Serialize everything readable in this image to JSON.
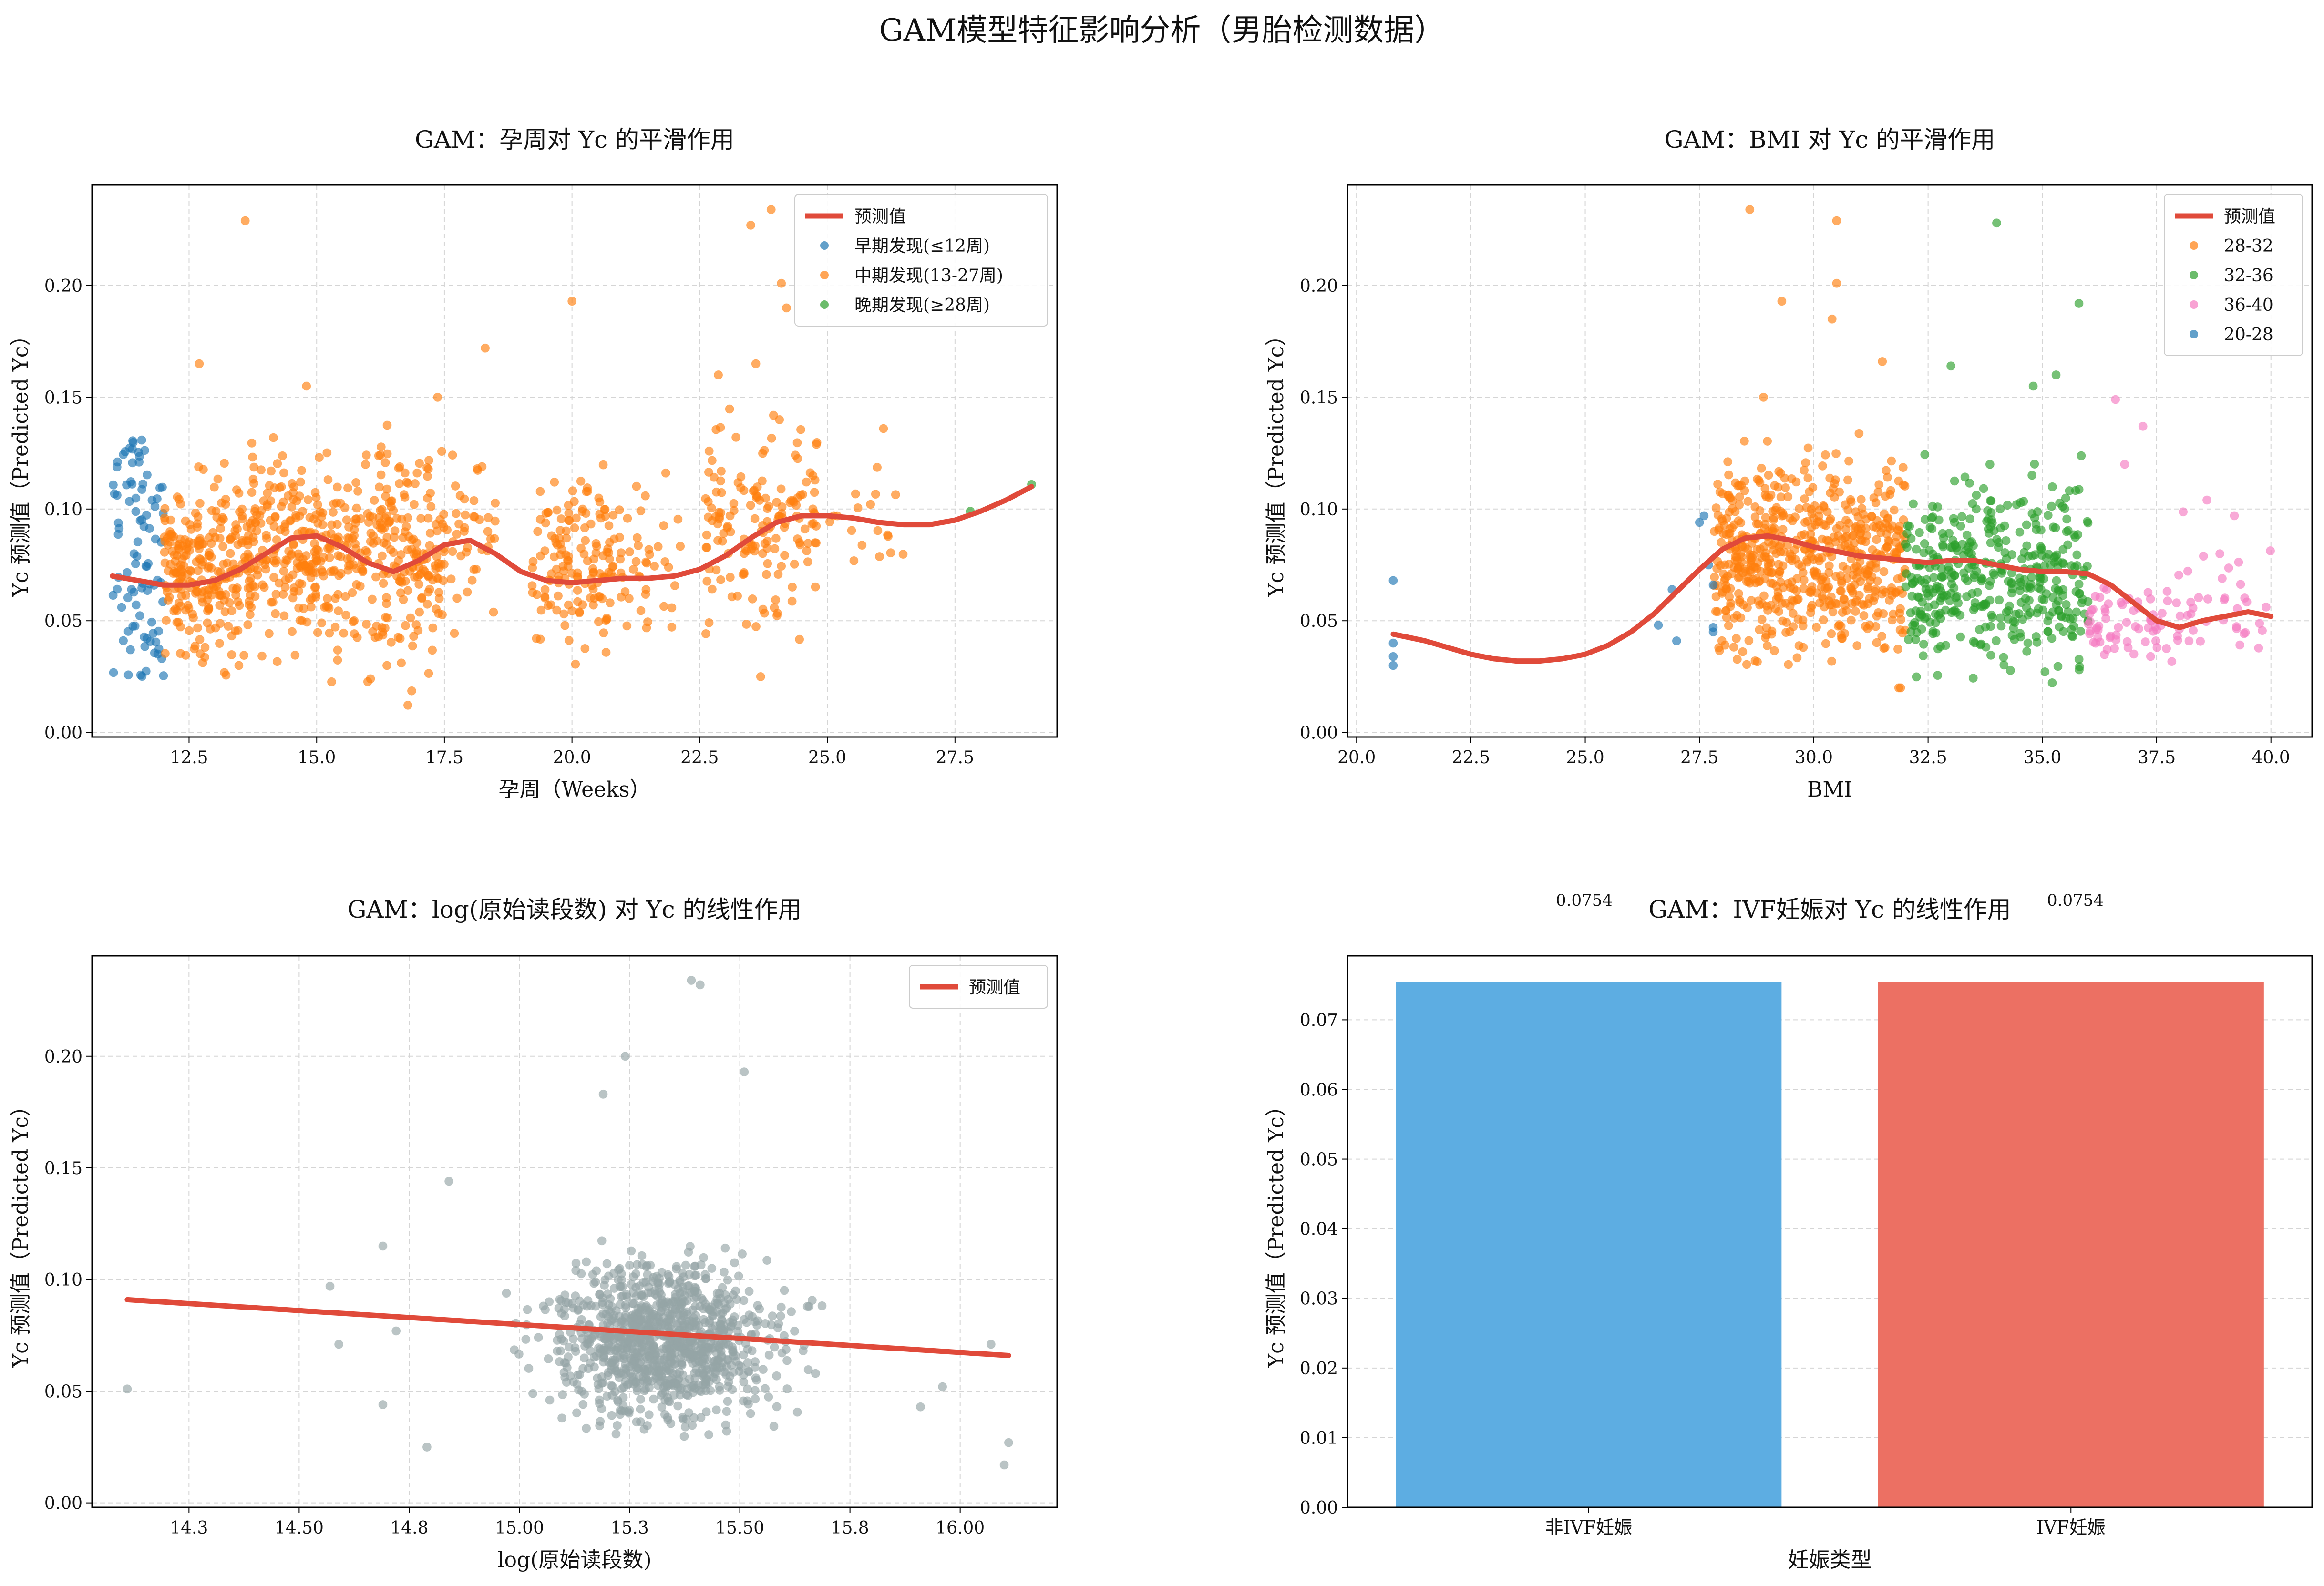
{
  "figure": {
    "suptitle": "GAM模型特征影响分析（男胎检测数据）"
  },
  "chart_data": [
    {
      "type": "scatter",
      "title": "GAM：孕周对 Yc 的平滑作用",
      "xlabel": "孕周（Weeks）",
      "ylabel": "Yc 预测值（Predicted Yc）",
      "xlim": [
        10.6,
        29.5
      ],
      "ylim": [
        -0.002,
        0.245
      ],
      "xticks": [
        12.5,
        15.0,
        17.5,
        20.0,
        22.5,
        25.0,
        27.5
      ],
      "yticks": [
        0.0,
        0.05,
        0.1,
        0.15,
        0.2
      ],
      "grid": true,
      "legend_position": "top-right",
      "legend": [
        "预测值",
        "早期发现(≤12周)",
        "中期发现(13-27周)",
        "晚期发现(≥28周)"
      ],
      "series": [
        {
          "name": "预测值",
          "kind": "line",
          "color": "#e04a3a",
          "points": [
            [
              11.0,
              0.07
            ],
            [
              11.5,
              0.068
            ],
            [
              12.0,
              0.066
            ],
            [
              12.5,
              0.066
            ],
            [
              13.0,
              0.068
            ],
            [
              13.5,
              0.073
            ],
            [
              14.0,
              0.08
            ],
            [
              14.5,
              0.087
            ],
            [
              15.0,
              0.088
            ],
            [
              15.5,
              0.083
            ],
            [
              16.0,
              0.076
            ],
            [
              16.5,
              0.072
            ],
            [
              17.0,
              0.077
            ],
            [
              17.5,
              0.084
            ],
            [
              18.0,
              0.086
            ],
            [
              18.5,
              0.08
            ],
            [
              19.0,
              0.072
            ],
            [
              19.5,
              0.068
            ],
            [
              20.0,
              0.067
            ],
            [
              20.5,
              0.068
            ],
            [
              21.0,
              0.069
            ],
            [
              21.5,
              0.069
            ],
            [
              22.0,
              0.07
            ],
            [
              22.5,
              0.073
            ],
            [
              23.0,
              0.079
            ],
            [
              23.5,
              0.087
            ],
            [
              24.0,
              0.094
            ],
            [
              24.5,
              0.097
            ],
            [
              25.0,
              0.097
            ],
            [
              25.5,
              0.096
            ],
            [
              26.0,
              0.094
            ],
            [
              26.5,
              0.093
            ],
            [
              27.0,
              0.093
            ],
            [
              27.5,
              0.095
            ],
            [
              28.0,
              0.099
            ],
            [
              28.5,
              0.104
            ],
            [
              29.0,
              0.11
            ]
          ]
        },
        {
          "name": "早期发现(≤12周)",
          "kind": "points",
          "color": "#1f77b4",
          "xrange": [
            11.0,
            12.0
          ],
          "yrange": [
            0.025,
            0.135
          ],
          "n": 90
        },
        {
          "name": "中期发现(13-27周)",
          "kind": "points",
          "color": "#ff7f0e",
          "n": 950,
          "clusters": [
            [
              12.0,
              13.5,
              0.015,
              0.13,
              230
            ],
            [
              13.5,
              15.5,
              0.02,
              0.145,
              260
            ],
            [
              15.5,
              17.5,
              0.01,
              0.15,
              240
            ],
            [
              17.5,
              18.5,
              0.04,
              0.14,
              40
            ],
            [
              19.2,
              21.0,
              0.025,
              0.13,
              150
            ],
            [
              21.0,
              22.2,
              0.015,
              0.14,
              35
            ],
            [
              22.6,
              24.8,
              0.025,
              0.16,
              160
            ],
            [
              25.0,
              26.5,
              0.055,
              0.135,
              18
            ]
          ],
          "outliers": [
            [
              13.6,
              0.229
            ],
            [
              23.5,
              0.227
            ],
            [
              23.9,
              0.234
            ],
            [
              24.1,
              0.201
            ],
            [
              20.0,
              0.193
            ],
            [
              18.3,
              0.172
            ],
            [
              14.8,
              0.155
            ],
            [
              12.7,
              0.165
            ],
            [
              24.2,
              0.19
            ],
            [
              23.6,
              0.165
            ],
            [
              26.1,
              0.136
            ]
          ]
        },
        {
          "name": "晚期发现(≥28周)",
          "kind": "points",
          "color": "#2ca02c",
          "points": [
            [
              27.8,
              0.099
            ],
            [
              29.0,
              0.111
            ]
          ]
        }
      ]
    },
    {
      "type": "scatter",
      "title": "GAM：BMI 对 Yc 的平滑作用",
      "xlabel": "BMI",
      "ylabel": "Yc 预测值（Predicted Yc）",
      "xlim": [
        19.8,
        40.9
      ],
      "ylim": [
        -0.002,
        0.245
      ],
      "xticks": [
        20.0,
        22.5,
        25.0,
        27.5,
        30.0,
        32.5,
        35.0,
        37.5,
        40.0
      ],
      "yticks": [
        0.0,
        0.05,
        0.1,
        0.15,
        0.2
      ],
      "grid": true,
      "legend_position": "top-right",
      "legend": [
        "预测值",
        "28-32",
        "32-36",
        "36-40",
        "20-28"
      ],
      "series": [
        {
          "name": "预测值",
          "kind": "line",
          "color": "#e04a3a",
          "points": [
            [
              20.8,
              0.044
            ],
            [
              21.5,
              0.041
            ],
            [
              22.0,
              0.038
            ],
            [
              22.5,
              0.035
            ],
            [
              23.0,
              0.033
            ],
            [
              23.5,
              0.032
            ],
            [
              24.0,
              0.032
            ],
            [
              24.5,
              0.033
            ],
            [
              25.0,
              0.035
            ],
            [
              25.5,
              0.039
            ],
            [
              26.0,
              0.045
            ],
            [
              26.5,
              0.053
            ],
            [
              27.0,
              0.063
            ],
            [
              27.5,
              0.073
            ],
            [
              28.0,
              0.082
            ],
            [
              28.5,
              0.087
            ],
            [
              29.0,
              0.088
            ],
            [
              29.5,
              0.086
            ],
            [
              30.0,
              0.083
            ],
            [
              30.5,
              0.081
            ],
            [
              31.0,
              0.079
            ],
            [
              31.5,
              0.078
            ],
            [
              32.0,
              0.077
            ],
            [
              32.5,
              0.076
            ],
            [
              33.0,
              0.077
            ],
            [
              33.5,
              0.077
            ],
            [
              34.0,
              0.075
            ],
            [
              34.5,
              0.073
            ],
            [
              35.0,
              0.072
            ],
            [
              35.5,
              0.072
            ],
            [
              36.0,
              0.071
            ],
            [
              36.5,
              0.066
            ],
            [
              37.0,
              0.058
            ],
            [
              37.5,
              0.05
            ],
            [
              38.0,
              0.047
            ],
            [
              38.5,
              0.05
            ],
            [
              39.0,
              0.052
            ],
            [
              39.5,
              0.054
            ],
            [
              40.0,
              0.052
            ]
          ]
        },
        {
          "name": "28-32",
          "kind": "points",
          "color": "#ff7f0e",
          "n": 640,
          "clusters": [
            [
              27.8,
              32.0,
              0.02,
              0.135,
              620
            ]
          ],
          "outliers": [
            [
              28.6,
              0.234
            ],
            [
              30.5,
              0.229
            ],
            [
              30.5,
              0.201
            ],
            [
              29.3,
              0.193
            ],
            [
              30.4,
              0.185
            ],
            [
              31.5,
              0.166
            ],
            [
              28.9,
              0.15
            ]
          ]
        },
        {
          "name": "32-36",
          "kind": "points",
          "color": "#2ca02c",
          "n": 420,
          "clusters": [
            [
              32.0,
              36.0,
              0.01,
              0.13,
              410
            ]
          ],
          "outliers": [
            [
              34.0,
              0.228
            ],
            [
              35.8,
              0.192
            ],
            [
              35.3,
              0.16
            ],
            [
              34.8,
              0.155
            ],
            [
              33.0,
              0.164
            ]
          ]
        },
        {
          "name": "36-40",
          "kind": "points",
          "color": "#f57bc1",
          "n": 110,
          "clusters": [
            [
              36.0,
              37.6,
              0.02,
              0.08,
              60
            ],
            [
              37.6,
              40.0,
              0.015,
              0.1,
              45
            ]
          ],
          "outliers": [
            [
              36.6,
              0.149
            ],
            [
              37.2,
              0.137
            ],
            [
              36.8,
              0.12
            ],
            [
              38.6,
              0.104
            ],
            [
              39.2,
              0.097
            ]
          ]
        },
        {
          "name": "20-28",
          "kind": "points",
          "color": "#1f77b4",
          "points": [
            [
              20.8,
              0.068
            ],
            [
              20.8,
              0.04
            ],
            [
              20.8,
              0.034
            ],
            [
              20.8,
              0.03
            ],
            [
              26.6,
              0.048
            ],
            [
              27.0,
              0.041
            ],
            [
              27.5,
              0.094
            ],
            [
              27.6,
              0.097
            ],
            [
              27.7,
              0.075
            ],
            [
              27.8,
              0.066
            ],
            [
              27.8,
              0.047
            ],
            [
              27.8,
              0.045
            ],
            [
              26.9,
              0.064
            ]
          ]
        }
      ]
    },
    {
      "type": "scatter",
      "title": "GAM：log(原始读段数) 对 Yc 的线性作用",
      "xlabel": "log(原始读段数)",
      "ylabel": "Yc 预测值（Predicted Yc）",
      "xlim": [
        14.03,
        16.22
      ],
      "ylim": [
        -0.002,
        0.245
      ],
      "xticks": [
        14.25,
        14.5,
        14.75,
        15.0,
        15.25,
        15.5,
        15.75,
        16.0
      ],
      "yticks": [
        0.0,
        0.05,
        0.1,
        0.15,
        0.2
      ],
      "grid": true,
      "legend_position": "top-right",
      "legend": [
        "预测值"
      ],
      "series": [
        {
          "name": "预测值",
          "kind": "line",
          "color": "#e04a3a",
          "points": [
            [
              14.11,
              0.091
            ],
            [
              16.11,
              0.066
            ]
          ]
        },
        {
          "kind": "points",
          "color": "#95a5a6",
          "n": 1050,
          "center": [
            15.33,
            0.073
          ],
          "spread": [
            0.19,
            0.025
          ],
          "outliers": [
            [
              14.11,
              0.051
            ],
            [
              14.57,
              0.097
            ],
            [
              14.59,
              0.071
            ],
            [
              14.69,
              0.044
            ],
            [
              14.69,
              0.115
            ],
            [
              14.72,
              0.077
            ],
            [
              14.79,
              0.025
            ],
            [
              14.84,
              0.144
            ],
            [
              16.11,
              0.027
            ],
            [
              16.1,
              0.017
            ],
            [
              16.07,
              0.071
            ],
            [
              15.96,
              0.052
            ],
            [
              15.91,
              0.043
            ],
            [
              15.39,
              0.234
            ],
            [
              15.24,
              0.2
            ],
            [
              15.41,
              0.232
            ],
            [
              15.51,
              0.193
            ],
            [
              15.19,
              0.183
            ]
          ]
        }
      ]
    },
    {
      "type": "bar",
      "title": "GAM：IVF妊娠对 Yc 的线性作用",
      "xlabel": "妊娠类型",
      "ylabel": "Yc 预测值（Predicted Yc）",
      "categories": [
        "非IVF妊娠",
        "IVF妊娠"
      ],
      "values": [
        0.0754,
        0.0754
      ],
      "data_labels": [
        "0.0754",
        "0.0754"
      ],
      "colors": [
        "#5dade2",
        "#ec7063"
      ],
      "ylim": [
        0,
        0.0792
      ],
      "yticks": [
        0.0,
        0.01,
        0.02,
        0.03,
        0.04,
        0.05,
        0.06,
        0.07
      ],
      "grid": true
    }
  ]
}
